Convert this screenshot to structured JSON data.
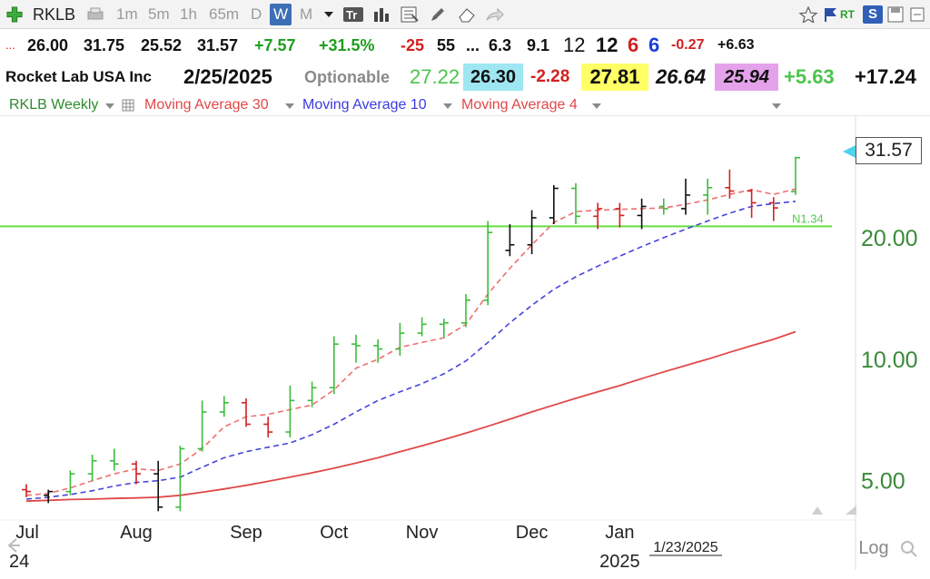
{
  "toolbar": {
    "symbol": "RKLB",
    "intervals": [
      "1m",
      "5m",
      "1h",
      "65m",
      "D",
      "W",
      "M"
    ],
    "active_interval": "W",
    "rt_label": "RT",
    "s_label": "S",
    "icons": [
      "add-icon",
      "print-icon",
      "text-icon",
      "bar-chart-icon",
      "calculator-icon",
      "pencil-icon",
      "eraser-icon",
      "share-icon",
      "star-icon",
      "flag-icon",
      "s-menu-icon",
      "save-icon"
    ]
  },
  "quote_row1": {
    "lead": "...",
    "open": "26.00",
    "high": "31.75",
    "low": "25.52",
    "close": "31.57",
    "change": "+7.57",
    "change_pct": "+31.5%",
    "v1": "-25",
    "v2": "55",
    "v3": "...",
    "v4": "6.3",
    "v5": "9.1",
    "v6": "12",
    "v7": "12",
    "v8": "6",
    "v9": "6",
    "v10": "-0.27",
    "v11": "+6.63"
  },
  "quote_row2": {
    "company": "Rocket Lab USA Inc",
    "date": "2/25/2025",
    "optionable": "Optionable",
    "v1": "27.22",
    "v2": "26.30",
    "v3": "-2.28",
    "v4": "27.81",
    "v5": "26.64",
    "v6": "25.94",
    "v7": "+5.63",
    "v8": "+17.24"
  },
  "legend": {
    "main": "RKLB Weekly",
    "ma30": "Moving Average 30",
    "ma10": "Moving Average 10",
    "ma4": "Moving Average 4"
  },
  "colors": {
    "up": "#3cbc3c",
    "down": "#d42020",
    "flat": "#111111",
    "ma30": "#e04848",
    "ma10": "#4444dd",
    "ma4": "#ee7070",
    "green_line": "#66dd44",
    "axis_label": "#3a8a3a"
  },
  "chart_data": {
    "type": "ohlc",
    "scale": "log",
    "period": "weekly",
    "ylim": [
      4.1,
      40
    ],
    "y_ticks": [
      5.0,
      10.0,
      20.0
    ],
    "y_tick_labels": [
      "5.00",
      "10.00",
      "20.00"
    ],
    "last_price_label": "31.57",
    "green_line_level": 21.34,
    "green_line_label": "N1.34",
    "x_labels": [
      {
        "label": "Jul",
        "bar": 0.5
      },
      {
        "label": "Aug",
        "bar": 5
      },
      {
        "label": "Sep",
        "bar": 10
      },
      {
        "label": "Oct",
        "bar": 14
      },
      {
        "label": "Nov",
        "bar": 18
      },
      {
        "label": "Dec",
        "bar": 23
      },
      {
        "label": "Jan",
        "bar": 27
      },
      {
        "label": "2025",
        "bar": 27
      },
      {
        "label": "1/23/2025",
        "bar": 30
      },
      {
        "label": "Log",
        "bar": 33
      },
      {
        "label": "24",
        "bar": 0
      }
    ],
    "bars": [
      {
        "o": 4.75,
        "h": 4.9,
        "l": 4.55,
        "c": 4.7,
        "d": -1
      },
      {
        "o": 4.6,
        "h": 4.75,
        "l": 4.4,
        "c": 4.7,
        "d": 0
      },
      {
        "o": 4.7,
        "h": 5.3,
        "l": 4.6,
        "c": 5.2,
        "d": 1
      },
      {
        "o": 5.2,
        "h": 5.8,
        "l": 5.0,
        "c": 5.6,
        "d": 1
      },
      {
        "o": 5.6,
        "h": 6.0,
        "l": 5.3,
        "c": 5.5,
        "d": 1
      },
      {
        "o": 5.5,
        "h": 5.6,
        "l": 4.9,
        "c": 5.2,
        "d": -1
      },
      {
        "o": 5.2,
        "h": 5.6,
        "l": 4.2,
        "c": 4.3,
        "d": 0
      },
      {
        "o": 4.3,
        "h": 6.1,
        "l": 4.2,
        "c": 6.0,
        "d": 1
      },
      {
        "o": 6.0,
        "h": 7.9,
        "l": 5.9,
        "c": 7.4,
        "d": 1
      },
      {
        "o": 7.4,
        "h": 8.1,
        "l": 7.2,
        "c": 7.8,
        "d": 1
      },
      {
        "o": 7.8,
        "h": 8.0,
        "l": 6.8,
        "c": 6.9,
        "d": -1
      },
      {
        "o": 6.9,
        "h": 7.2,
        "l": 6.4,
        "c": 6.6,
        "d": -1
      },
      {
        "o": 6.6,
        "h": 8.6,
        "l": 6.4,
        "c": 7.9,
        "d": 1
      },
      {
        "o": 7.9,
        "h": 8.8,
        "l": 7.6,
        "c": 8.5,
        "d": 1
      },
      {
        "o": 8.5,
        "h": 11.4,
        "l": 8.2,
        "c": 10.9,
        "d": 1
      },
      {
        "o": 10.9,
        "h": 11.5,
        "l": 9.8,
        "c": 10.8,
        "d": 1
      },
      {
        "o": 10.8,
        "h": 11.2,
        "l": 9.8,
        "c": 10.6,
        "d": 1
      },
      {
        "o": 10.6,
        "h": 12.3,
        "l": 10.2,
        "c": 11.6,
        "d": 1
      },
      {
        "o": 11.6,
        "h": 12.7,
        "l": 11.4,
        "c": 12.2,
        "d": 1
      },
      {
        "o": 12.2,
        "h": 12.6,
        "l": 11.3,
        "c": 12.3,
        "d": 1
      },
      {
        "o": 12.3,
        "h": 14.5,
        "l": 12.0,
        "c": 14.0,
        "d": 1
      },
      {
        "o": 14.0,
        "h": 22.0,
        "l": 13.6,
        "c": 20.6,
        "d": 1
      },
      {
        "o": 18.6,
        "h": 21.6,
        "l": 18.0,
        "c": 19.2,
        "d": 0
      },
      {
        "o": 19.2,
        "h": 23.4,
        "l": 18.2,
        "c": 22.4,
        "d": 0
      },
      {
        "o": 22.4,
        "h": 27.0,
        "l": 21.6,
        "c": 26.5,
        "d": 0
      },
      {
        "o": 26.5,
        "h": 27.3,
        "l": 21.6,
        "c": 22.6,
        "d": 1
      },
      {
        "o": 22.6,
        "h": 24.4,
        "l": 21.0,
        "c": 23.6,
        "d": -1
      },
      {
        "o": 23.6,
        "h": 24.4,
        "l": 21.2,
        "c": 22.7,
        "d": -1
      },
      {
        "o": 22.7,
        "h": 25.0,
        "l": 21.0,
        "c": 23.9,
        "d": 0
      },
      {
        "o": 23.9,
        "h": 25.0,
        "l": 22.8,
        "c": 23.6,
        "d": 1
      },
      {
        "o": 23.6,
        "h": 28.0,
        "l": 22.8,
        "c": 25.5,
        "d": 0
      },
      {
        "o": 25.5,
        "h": 28.0,
        "l": 22.8,
        "c": 26.6,
        "d": 1
      },
      {
        "o": 26.6,
        "h": 29.5,
        "l": 25.0,
        "c": 26.1,
        "d": -1
      },
      {
        "o": 26.1,
        "h": 26.4,
        "l": 22.4,
        "c": 24.4,
        "d": -1
      },
      {
        "o": 24.4,
        "h": 25.2,
        "l": 22.0,
        "c": 23.7,
        "d": -1
      },
      {
        "o": 26.0,
        "h": 31.75,
        "l": 25.52,
        "c": 31.57,
        "d": 1
      }
    ],
    "series": [
      {
        "name": "Moving Average 30",
        "values": [
          4.45,
          4.47,
          4.49,
          4.5,
          4.52,
          4.53,
          4.55,
          4.6,
          4.68,
          4.77,
          4.87,
          4.98,
          5.1,
          5.23,
          5.37,
          5.53,
          5.7,
          5.9,
          6.1,
          6.32,
          6.56,
          6.82,
          7.1,
          7.4,
          7.7,
          8.0,
          8.3,
          8.6,
          8.95,
          9.3,
          9.65,
          10.0,
          10.4,
          10.8,
          11.2,
          11.7
        ]
      },
      {
        "name": "Moving Average 10",
        "values": [
          4.5,
          4.55,
          4.62,
          4.72,
          4.85,
          4.95,
          5.0,
          5.1,
          5.4,
          5.7,
          5.9,
          6.05,
          6.2,
          6.5,
          6.9,
          7.4,
          7.9,
          8.3,
          8.7,
          9.2,
          9.9,
          11.0,
          12.3,
          13.6,
          14.9,
          16.0,
          17.0,
          18.0,
          19.0,
          20.0,
          21.0,
          22.0,
          23.0,
          23.9,
          24.3,
          24.6
        ]
      },
      {
        "name": "Moving Average 4",
        "values": [
          4.6,
          4.65,
          4.8,
          5.0,
          5.2,
          5.35,
          5.3,
          5.5,
          6.0,
          6.8,
          7.2,
          7.3,
          7.5,
          7.7,
          8.4,
          9.5,
          10.0,
          10.7,
          11.0,
          11.3,
          12.2,
          14.5,
          16.8,
          19.2,
          21.8,
          23.2,
          23.4,
          23.5,
          23.6,
          23.7,
          24.2,
          24.8,
          25.6,
          26.3,
          25.6,
          26.4
        ]
      }
    ]
  }
}
